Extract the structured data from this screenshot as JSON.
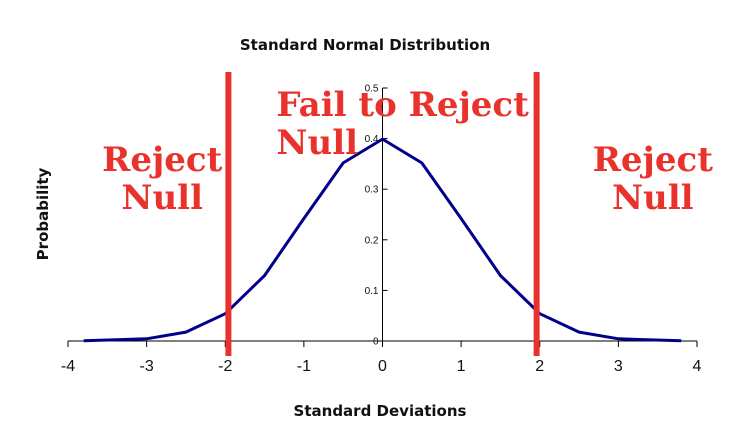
{
  "chart_data": {
    "type": "line",
    "title": "Standard Normal Distribution",
    "xlabel": "Standard Deviations",
    "ylabel": "Probability",
    "xlim": [
      -4,
      4
    ],
    "ylim": [
      0,
      0.5
    ],
    "x_ticks": [
      "-4",
      "-3",
      "-2",
      "-1",
      "0",
      "1",
      "2",
      "3",
      "4"
    ],
    "y_ticks": [
      "0",
      "0.1",
      "0.2",
      "0.3",
      "0.4",
      "0.5"
    ],
    "series": [
      {
        "x": [
          -3.8,
          -3.0,
          -2.5,
          -2.0,
          -1.5,
          -1.0,
          -0.5,
          0.0,
          0.5,
          1.0,
          1.5,
          2.0,
          2.5,
          3.0,
          3.8
        ],
        "values": [
          0.0003,
          0.0044,
          0.0175,
          0.054,
          0.1295,
          0.242,
          0.352,
          0.399,
          0.352,
          0.242,
          0.1295,
          0.054,
          0.0175,
          0.0044,
          0.0003
        ],
        "color": "#00008b"
      }
    ],
    "critical_lines": [
      -1.96,
      1.96
    ],
    "critical_line_color": "#e8322b",
    "annotations": [
      {
        "lines": [
          "Reject",
          "Null"
        ]
      },
      {
        "lines": [
          "Fail to Reject",
          "Null"
        ]
      },
      {
        "lines": [
          "Reject",
          "Null"
        ]
      }
    ],
    "annotation_color": "#e8322b",
    "grid": false
  }
}
